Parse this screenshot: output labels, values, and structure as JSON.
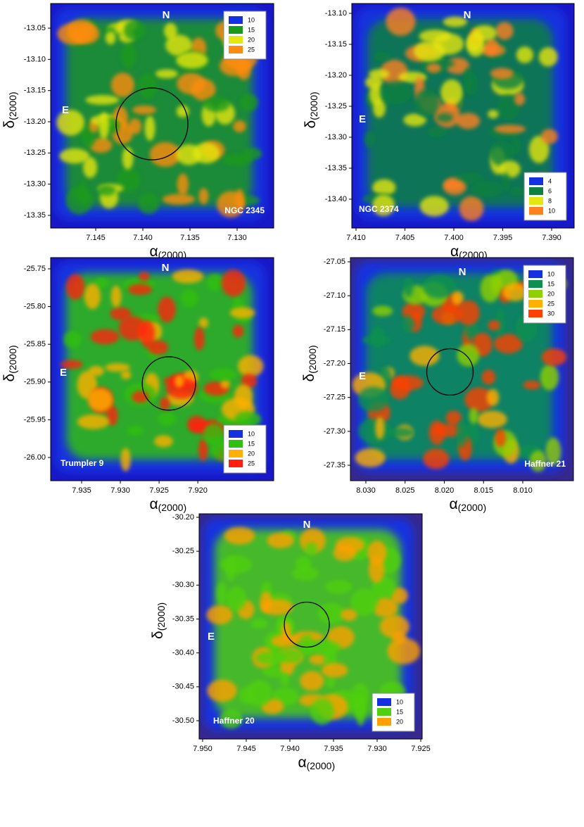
{
  "chart_data": [
    {
      "type": "contour",
      "x_label": "α",
      "x_label_sub": "(2000)",
      "y_label": "δ",
      "y_label_sub": "(2000)",
      "north_label": "N",
      "east_label": "E",
      "label": "NGC 2345",
      "xlim": [
        7.14978,
        7.12612
      ],
      "ylim": [
        -13.3703,
        -13.0105
      ],
      "xticks": [
        7.145,
        {
          "value": 7.14,
          "label": "7.140"
        },
        7.135,
        {
          "value": 7.13,
          "label": "7.130"
        }
      ],
      "yticks": [
        -13.05,
        {
          "value": -13.1,
          "label": "-13.10"
        },
        -13.15,
        {
          "value": -13.2,
          "label": "-13.20"
        },
        -13.25,
        {
          "value": -13.3,
          "label": "-13.30"
        },
        -13.35
      ],
      "circle": {
        "x": 7.13903,
        "y": -13.2034,
        "r": 0.0576
      },
      "legend": {
        "position": "upper right",
        "levels": [
          10,
          15,
          20,
          25
        ],
        "colors": [
          "#1530e0",
          "#1a9a1a",
          "#e6e610",
          "#ff8c10"
        ]
      }
    },
    {
      "type": "contour",
      "x_label": "α",
      "x_label_sub": "(2000)",
      "y_label": "δ",
      "y_label_sub": "(2000)",
      "north_label": "N",
      "east_label": "E",
      "label": "NGC 2374",
      "xlim": [
        7.41043,
        7.3877
      ],
      "ylim": [
        -13.4466,
        -13.0841
      ],
      "xticks": [
        {
          "value": 7.41,
          "label": "7.410"
        },
        7.405,
        {
          "value": 7.4,
          "label": "7.400"
        },
        7.395,
        {
          "value": 7.39,
          "label": "7.390"
        }
      ],
      "yticks": [
        {
          "value": -13.1,
          "label": "-13.10"
        },
        -13.15,
        {
          "value": -13.2,
          "label": "-13.20"
        },
        -13.25,
        {
          "value": -13.3,
          "label": "-13.30"
        },
        -13.35,
        {
          "value": -13.4,
          "label": "-13.40"
        }
      ],
      "legend": {
        "position": "lower right",
        "levels": [
          4,
          6,
          8,
          10
        ],
        "colors": [
          "#1530e0",
          "#108040",
          "#e6e610",
          "#ff8020"
        ]
      }
    },
    {
      "type": "contour",
      "x_label": "α",
      "x_label_sub": "(2000)",
      "y_label": "δ",
      "y_label_sub": "(2000)",
      "north_label": "N",
      "east_label": "E",
      "label": "Trumpler 9",
      "xlim": [
        7.939,
        7.9102
      ],
      "ylim": [
        -26.0308,
        -25.7351
      ],
      "xticks": [
        7.935,
        {
          "value": 7.93,
          "label": "7.930"
        },
        7.925,
        {
          "value": 7.92,
          "label": "7.920"
        }
      ],
      "yticks": [
        -25.75,
        {
          "value": -25.8,
          "label": "-25.80"
        },
        -25.85,
        {
          "value": -25.9,
          "label": "-25.90"
        },
        -25.95,
        {
          "value": -26,
          "label": "-26.00"
        }
      ],
      "circle": {
        "x": 7.92373,
        "y": -25.9019,
        "r": 0.0354
      },
      "legend": {
        "position": "lower right",
        "levels": [
          10,
          15,
          20,
          25
        ],
        "colors": [
          "#1530e0",
          "#30c010",
          "#ffb000",
          "#ff2010"
        ]
      }
    },
    {
      "type": "contour",
      "x_label": "α",
      "x_label_sub": "(2000)",
      "y_label": "δ",
      "y_label_sub": "(2000)",
      "north_label": "N",
      "east_label": "E",
      "label": "Haffner 21",
      "xlim": [
        8.03197,
        8.00354
      ],
      "ylim": [
        -27.3728,
        -27.0438
      ],
      "xticks": [
        {
          "value": 8.03,
          "label": "8.030"
        },
        8.025,
        {
          "value": 8.02,
          "label": "8.020"
        },
        8.015,
        {
          "value": 8.01,
          "label": "8.010"
        }
      ],
      "yticks": [
        -27.05,
        {
          "value": -27.1,
          "label": "-27.10"
        },
        -27.15,
        {
          "value": -27.2,
          "label": "-27.20"
        },
        -27.25,
        {
          "value": -27.3,
          "label": "-27.30"
        },
        -27.35
      ],
      "circle": {
        "x": 8.01928,
        "y": -27.2124,
        "r": 0.0342
      },
      "legend": {
        "position": "upper right",
        "levels": [
          10,
          15,
          20,
          25,
          30
        ],
        "colors": [
          "#1530e0",
          "#109050",
          "#90d000",
          "#ffb000",
          "#ff4000"
        ]
      }
    },
    {
      "type": "contour",
      "x_label": "α",
      "x_label_sub": "(2000)",
      "y_label": "δ",
      "y_label_sub": "(2000)",
      "north_label": "N",
      "east_label": "E",
      "label": "Haffner 20",
      "xlim": [
        7.9504,
        7.92484
      ],
      "ylim": [
        -30.527,
        -30.1948
      ],
      "xticks": [
        {
          "value": 7.95,
          "label": "7.950"
        },
        7.945,
        {
          "value": 7.94,
          "label": "7.940"
        },
        7.935,
        {
          "value": 7.93,
          "label": "7.930"
        },
        7.925
      ],
      "yticks": [
        {
          "value": -30.2,
          "label": "-30.20"
        },
        -30.25,
        {
          "value": -30.3,
          "label": "-30.30"
        },
        -30.35,
        {
          "value": -30.4,
          "label": "-30.40"
        },
        -30.45,
        {
          "value": -30.5,
          "label": "-30.50"
        }
      ],
      "circle": {
        "x": 7.93806,
        "y": -30.3583,
        "r": 0.0332
      },
      "legend": {
        "position": "lower right",
        "levels": [
          10,
          15,
          20
        ],
        "colors": [
          "#1530e0",
          "#50d010",
          "#ffa000"
        ]
      }
    }
  ]
}
